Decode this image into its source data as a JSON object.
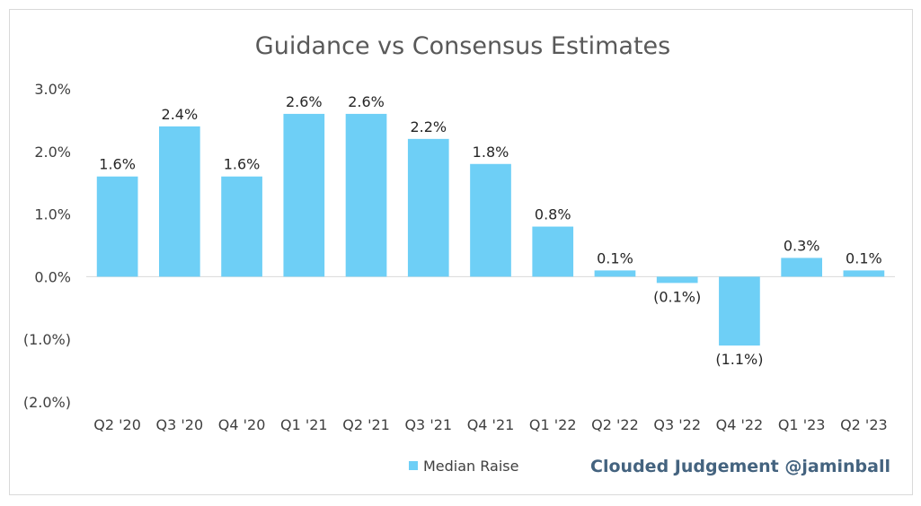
{
  "chart_data": {
    "type": "bar",
    "title": "Guidance vs Consensus Estimates",
    "categories": [
      "Q2 '20",
      "Q3 '20",
      "Q4 '20",
      "Q1 '21",
      "Q2 '21",
      "Q3 '21",
      "Q4 '21",
      "Q1 '22",
      "Q2 '22",
      "Q3 '22",
      "Q4 '22",
      "Q1 '23",
      "Q2 '23"
    ],
    "series": [
      {
        "name": "Median Raise",
        "values": [
          1.6,
          2.4,
          1.6,
          2.6,
          2.6,
          2.2,
          1.8,
          0.8,
          0.1,
          -0.1,
          -1.1,
          0.3,
          0.1
        ],
        "labels": [
          "1.6%",
          "2.4%",
          "1.6%",
          "2.6%",
          "2.6%",
          "2.2%",
          "1.8%",
          "0.8%",
          "0.1%",
          "(0.1%)",
          "(1.1%)",
          "0.3%",
          "0.1%"
        ]
      }
    ],
    "ylim": [
      -2.0,
      3.0
    ],
    "yticks": [
      3.0,
      2.0,
      1.0,
      0.0,
      -1.0,
      -2.0
    ],
    "ytick_labels": [
      "3.0%",
      "2.0%",
      "1.0%",
      "0.0%",
      "(1.0%)",
      "(2.0%)"
    ],
    "xlabel": "",
    "ylabel": "",
    "grid": false,
    "legend_position": "bottom",
    "bar_color": "#6ecff6"
  },
  "watermark": "Clouded Judgement @jaminball"
}
